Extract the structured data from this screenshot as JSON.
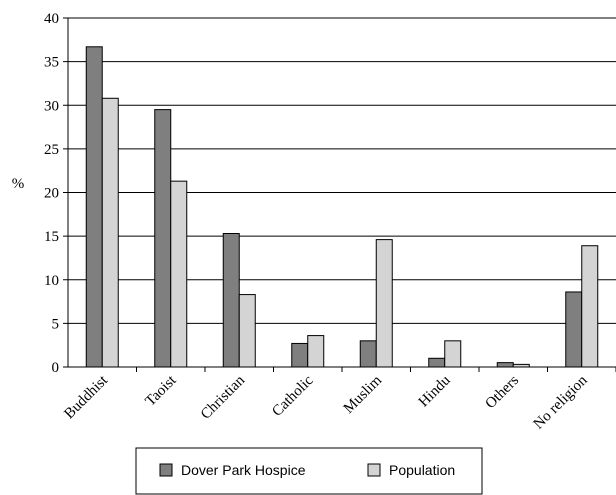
{
  "chart_data": {
    "type": "bar",
    "title": "",
    "xlabel": "",
    "ylabel": "%",
    "ylim": [
      0,
      40
    ],
    "yticks": [
      0,
      5,
      10,
      15,
      20,
      25,
      30,
      35,
      40
    ],
    "grid": true,
    "legend_position": "bottom",
    "categories": [
      "Buddhist",
      "Taoist",
      "Christian",
      "Catholic",
      "Muslim",
      "Hindu",
      "Others",
      "No religion"
    ],
    "series": [
      {
        "name": "Dover Park Hospice",
        "color": "#7f7f7f",
        "values": [
          36.7,
          29.5,
          15.3,
          2.7,
          3.0,
          1.0,
          0.5,
          8.6
        ]
      },
      {
        "name": "Population",
        "color": "#d4d4d4",
        "values": [
          30.8,
          21.3,
          8.3,
          3.6,
          14.6,
          3.0,
          0.3,
          13.9
        ]
      }
    ]
  }
}
